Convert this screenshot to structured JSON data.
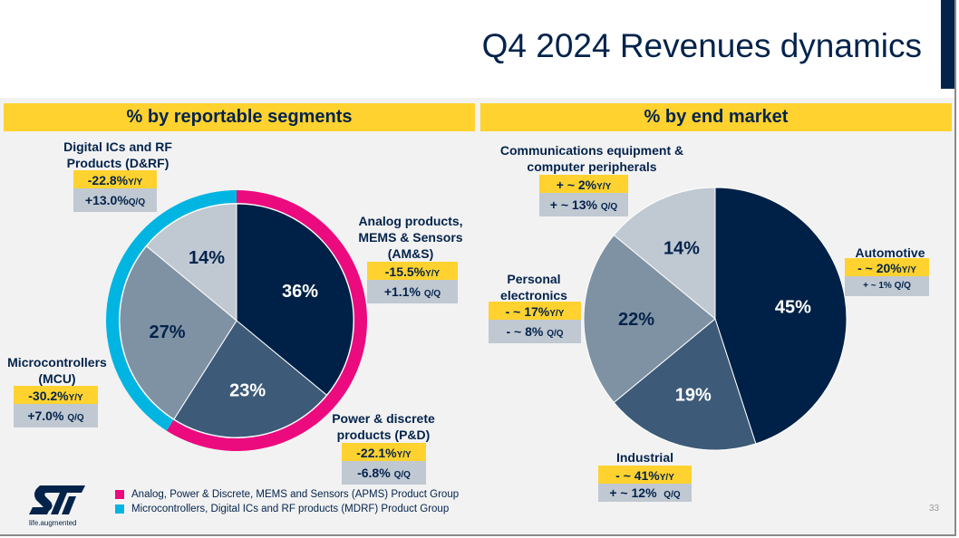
{
  "header": {
    "title": "Q4 2024 Revenues dynamics"
  },
  "sections": {
    "left": "% by reportable segments",
    "right": "% by end market"
  },
  "colors": {
    "navy": "#002147",
    "slate": "#3d5a78",
    "steel": "#7f92a3",
    "light": "#c0c8d2",
    "yellow": "#ffd22f",
    "magenta": "#ec0a7f",
    "cyan": "#00b5e2"
  },
  "chart_data": [
    {
      "type": "pie",
      "title": "% by reportable segments",
      "slices": [
        {
          "label": "Analog products, MEMS & Sensors (AM&S)",
          "value": 36,
          "value_label": "36%",
          "color": "#002147",
          "yy": "-15.5%",
          "qq": "+1.1%"
        },
        {
          "label": "Power & discrete products (P&D)",
          "value": 23,
          "value_label": "23%",
          "color": "#3d5a78",
          "yy": "-22.1%",
          "qq": "-6.8%"
        },
        {
          "label": "Microcontrollers (MCU)",
          "value": 27,
          "value_label": "27%",
          "color": "#7f92a3",
          "yy": "-30.2%",
          "qq": "+7.0%"
        },
        {
          "label": "Digital ICs and RF Products (D&RF)",
          "value": 14,
          "value_label": "14%",
          "color": "#c0c8d2",
          "yy": "-22.8%",
          "qq": "+13.0%"
        }
      ],
      "outer_ring": [
        {
          "group": "Analog, Power & Discrete, MEMS and Sensors (APMS) Product Group",
          "value": 59,
          "color": "#ec0a7f"
        },
        {
          "group": "Microcontrollers, Digital ICs and RF products (MDRF) Product Group",
          "value": 41,
          "color": "#00b5e2"
        }
      ]
    },
    {
      "type": "pie",
      "title": "% by end market",
      "slices": [
        {
          "label": "Automotive",
          "value": 45,
          "value_label": "45%",
          "color": "#002147",
          "yy": "- ~ 20%",
          "qq": "+ ~ 1%"
        },
        {
          "label": "Industrial",
          "value": 19,
          "value_label": "19%",
          "color": "#3d5a78",
          "yy": "- ~ 41%",
          "qq": "+ ~ 12%"
        },
        {
          "label": "Personal electronics",
          "value": 22,
          "value_label": "22%",
          "color": "#7f92a3",
          "yy": "- ~ 17%",
          "qq": "- ~ 8%"
        },
        {
          "label": "Communications equipment & computer peripherals",
          "value": 14,
          "value_label": "14%",
          "color": "#c0c8d2",
          "yy": "+ ~ 2%",
          "qq": "+ ~ 13%"
        }
      ]
    }
  ],
  "labels": {
    "yy_suffix": "Y/Y",
    "qq_suffix": "Q/Q",
    "drf": [
      "Digital ICs and RF",
      "Products (D&RF)"
    ],
    "ams": [
      "Analog products,",
      "MEMS & Sensors",
      "(AM&S)"
    ],
    "mcu": [
      "Microcontrollers",
      "(MCU)"
    ],
    "pd": [
      "Power & discrete",
      "products (P&D)"
    ],
    "comms": [
      "Communications equipment &",
      "computer peripherals"
    ],
    "auto": [
      "Automotive"
    ],
    "pe": [
      "Personal",
      "electronics"
    ],
    "ind": [
      "Industrial"
    ]
  },
  "legend": [
    {
      "label": "Analog, Power & Discrete, MEMS and Sensors (APMS) Product Group",
      "color": "#ec0a7f"
    },
    {
      "label": "Microcontrollers, Digital ICs and RF products (MDRF) Product Group",
      "color": "#00b5e2"
    }
  ],
  "footer": {
    "logo_text": "ST",
    "tagline": "life.augmented",
    "page_number": "33"
  }
}
